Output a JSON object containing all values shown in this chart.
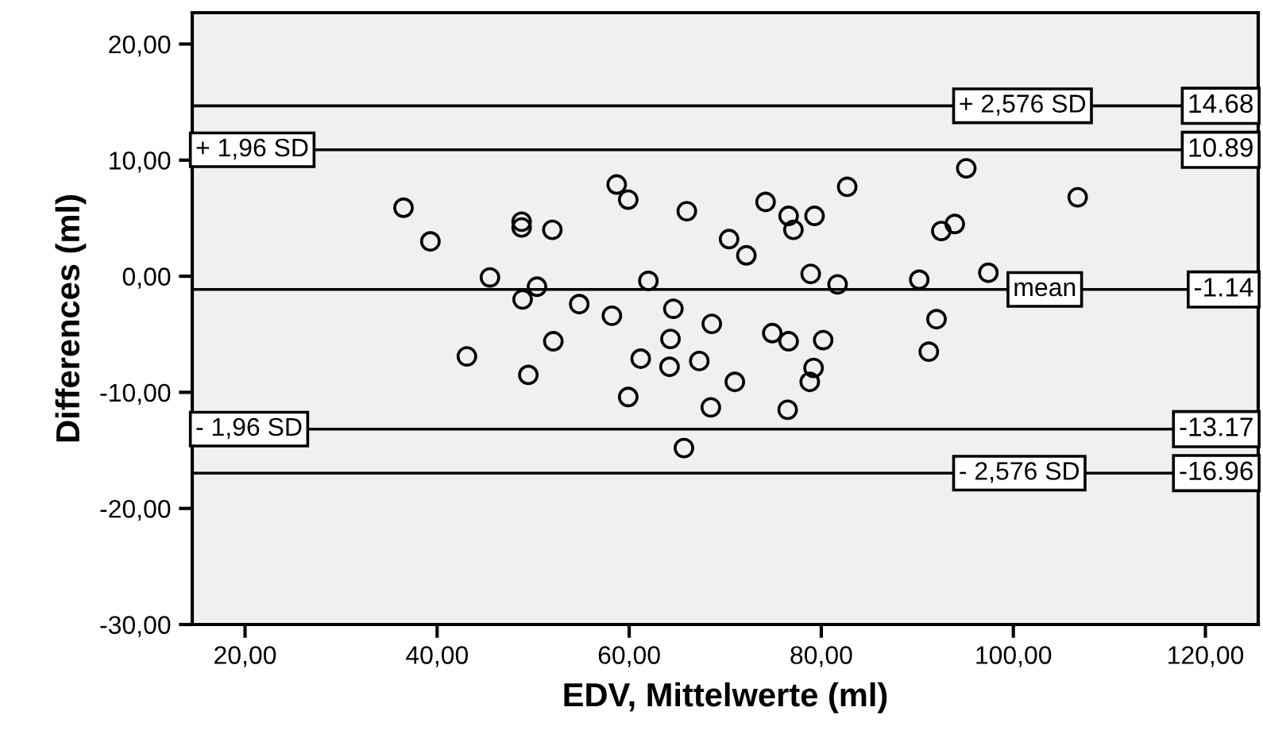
{
  "chart_data": {
    "type": "scatter",
    "xlabel": "EDV, Mittelwerte (ml)",
    "ylabel": "Differences (ml)",
    "x": [
      36.5,
      39.3,
      45.5,
      48.8,
      48.8,
      48.9,
      50.4,
      52.0,
      58.7,
      59.9,
      66.0,
      62.0,
      54.8,
      58.2,
      64.6,
      68.6,
      70.4,
      72.2,
      74.2,
      76.6,
      77.1,
      78.9,
      43.1,
      49.5,
      52.1,
      61.2,
      64.3,
      64.2,
      67.3,
      59.9,
      68.5,
      71.0,
      74.9,
      76.6,
      76.5,
      65.7,
      79.2,
      78.8,
      95.1,
      106.7,
      82.7,
      79.3,
      92.5,
      93.9,
      81.7,
      90.2,
      97.4,
      92.0,
      91.2,
      80.2
    ],
    "values": [
      5.9,
      3.0,
      -0.1,
      4.7,
      4.2,
      -2.0,
      -0.9,
      4.0,
      7.9,
      6.6,
      5.6,
      -0.4,
      -2.4,
      -3.4,
      -2.8,
      -4.1,
      3.2,
      1.8,
      6.4,
      5.2,
      4.0,
      0.2,
      -6.9,
      -8.5,
      -5.6,
      -7.1,
      -5.4,
      -7.8,
      -7.3,
      -10.4,
      -11.3,
      -9.1,
      -4.9,
      -5.6,
      -11.5,
      -14.8,
      -7.9,
      -9.1,
      9.3,
      6.8,
      7.7,
      5.2,
      3.9,
      4.5,
      -0.7,
      -0.3,
      0.3,
      -3.7,
      -6.5,
      -5.5
    ],
    "color": "#000000",
    "marker": "circle",
    "xlim": [
      14.5,
      125.5
    ],
    "ylim": [
      -30,
      22.7
    ],
    "xticks": [
      {
        "value": 20,
        "label": "20,00"
      },
      {
        "value": 40,
        "label": "40,00"
      },
      {
        "value": 60,
        "label": "60,00"
      },
      {
        "value": 80,
        "label": "80,00"
      },
      {
        "value": 100,
        "label": "100,00"
      },
      {
        "value": 120,
        "label": "120,00"
      }
    ],
    "yticks": [
      {
        "value": -30,
        "label": "-30,00"
      },
      {
        "value": -20,
        "label": "-20,00"
      },
      {
        "value": -10,
        "label": "-10,00"
      },
      {
        "value": 0,
        "label": "0,00"
      },
      {
        "value": 10,
        "label": "10,00"
      },
      {
        "value": 20,
        "label": "20,00"
      }
    ],
    "ref_lines": [
      {
        "axis": "y",
        "value": 14.68,
        "label": "+ 2,576 SD"
      },
      {
        "axis": "y",
        "value": 10.89,
        "label": "+ 1,96 SD"
      },
      {
        "axis": "y",
        "value": -1.14,
        "label": "mean"
      },
      {
        "axis": "y",
        "value": -13.17,
        "label": "- 1,96 SD"
      },
      {
        "axis": "y",
        "value": -16.96,
        "label": "- 2,576 SD"
      }
    ],
    "annotations": [
      {
        "text": "14.68",
        "y": 14.68
      },
      {
        "text": "10.89",
        "y": 10.89
      },
      {
        "text": "-1.14",
        "y": -1.14
      },
      {
        "text": "-13.17",
        "y": -13.17
      },
      {
        "text": "-16.96",
        "y": -16.96
      }
    ],
    "grid": false,
    "legend": false
  }
}
